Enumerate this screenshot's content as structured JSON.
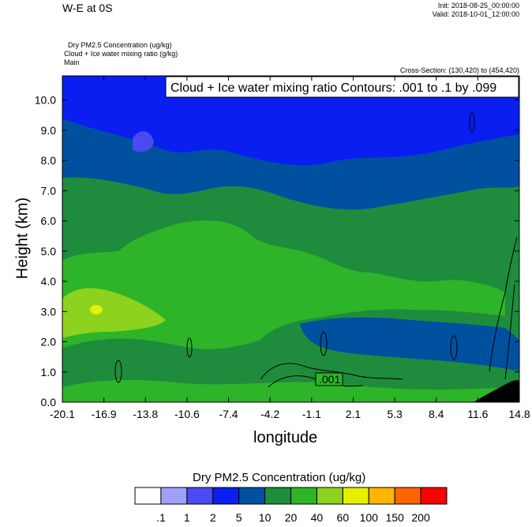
{
  "header": {
    "title": "W-E at 0S",
    "init": "Init: 2018-08-25_00:00:00",
    "valid": "Valid: 2018-10-01_12:00:00",
    "var1": "Dry PM2.5 Concentration   (ug/kg)",
    "var2": "Cloud + Ice water mixing ratio   (g/kg)",
    "var3": "Main",
    "cross_section": "Cross-Section: (130,420) to (454,420)"
  },
  "chart_data": {
    "type": "heatmap",
    "title": "W-E at 0S",
    "xlabel": "longitude",
    "ylabel": "Height (km)",
    "x_ticks": [
      "-20.1",
      "-16.9",
      "-13.8",
      "-10.6",
      "-7.4",
      "-4.2",
      "-1.1",
      "2.1",
      "5.3",
      "8.4",
      "11.6",
      "14.8"
    ],
    "y_ticks": [
      "0.0",
      "1.0",
      "2.0",
      "3.0",
      "4.0",
      "5.0",
      "6.0",
      "7.0",
      "8.0",
      "9.0",
      "10.0"
    ],
    "xlim": [
      -20.1,
      14.8
    ],
    "ylim": [
      0.0,
      10.8
    ],
    "contour_info": "Cloud + Ice water mixing ratio Contours: .001 to .1 by .099",
    "contour_label": ".001",
    "colorbar": {
      "title": "Dry PM2.5 Concentration  (ug/kg)",
      "levels": [
        ".1",
        "1",
        "2",
        "5",
        "10",
        "20",
        "40",
        "60",
        "100",
        "150",
        "200"
      ],
      "colors": [
        "#ffffff",
        "#a0a0ff",
        "#4a4af0",
        "#0a1ef0",
        "#0050a0",
        "#1e8c3c",
        "#2db428",
        "#8cd21e",
        "#e6f000",
        "#ffb400",
        "#ff6400",
        "#ff0000"
      ]
    }
  }
}
